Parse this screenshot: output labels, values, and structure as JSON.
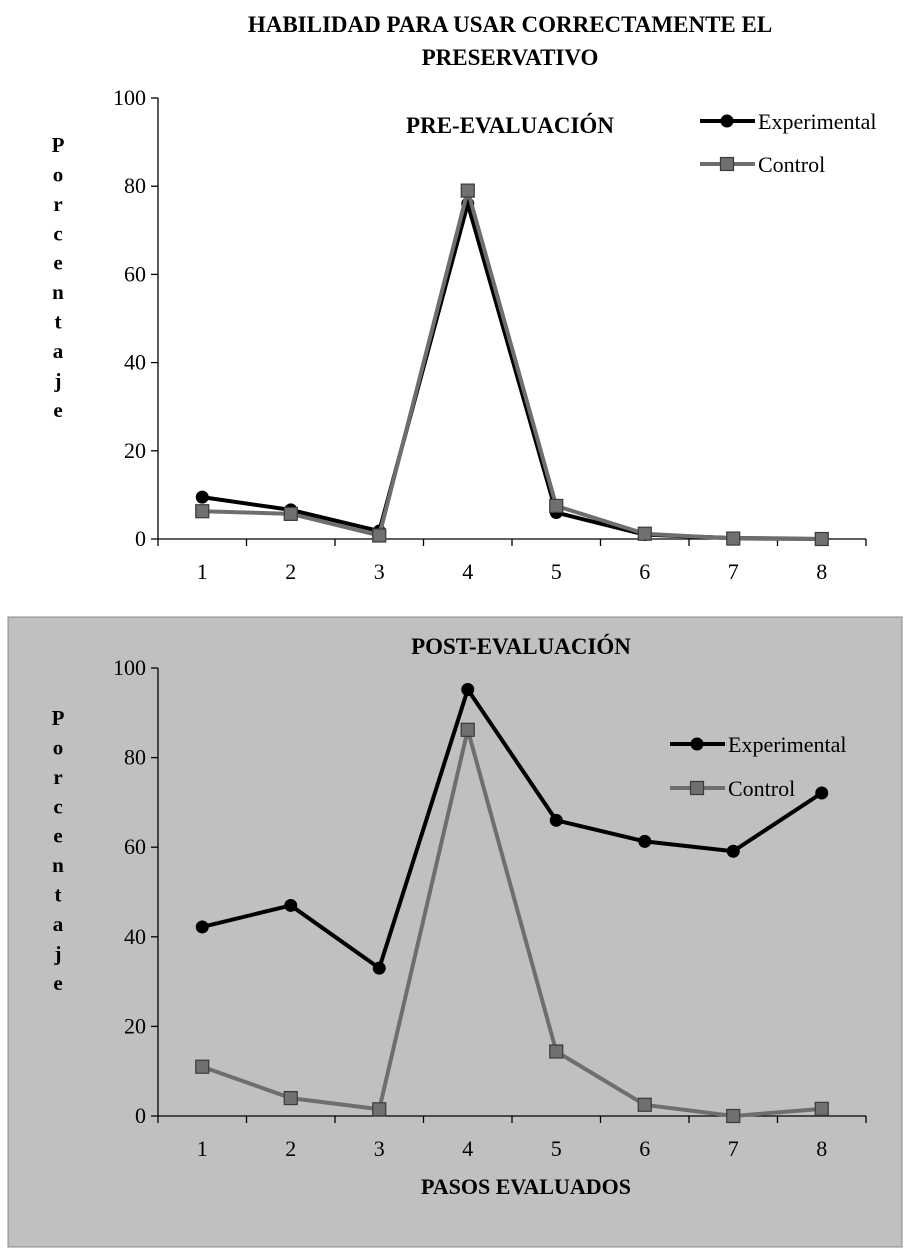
{
  "figure_title": "HABILIDAD PARA USAR CORRECTAMENTE EL PRESERVATIVO",
  "colors": {
    "experimental": "#000000",
    "control": "#6e6e6e",
    "post_background": "#c0c0c0"
  },
  "chart_data": [
    {
      "type": "line",
      "title": "PRE-EVALUACIÓN",
      "xlabel": "",
      "ylabel": "Porcentaje",
      "x": [
        1,
        2,
        3,
        4,
        5,
        6,
        7,
        8
      ],
      "ylim": [
        0,
        100
      ],
      "yticks": [
        0,
        20,
        40,
        60,
        80,
        100
      ],
      "grid": false,
      "legend": "top-right",
      "series": [
        {
          "name": "Experimental",
          "marker": "circle",
          "values": [
            9.5,
            6.6,
            1.8,
            76.0,
            6.0,
            1.0,
            0.2,
            0.0
          ]
        },
        {
          "name": "Control",
          "marker": "square",
          "values": [
            6.3,
            5.7,
            0.8,
            79.0,
            7.5,
            1.2,
            0.1,
            0.0
          ]
        }
      ]
    },
    {
      "type": "line",
      "title": "POST-EVALUACIÓN",
      "xlabel": "PASOS EVALUADOS",
      "ylabel": "Porcentaje",
      "x": [
        1,
        2,
        3,
        4,
        5,
        6,
        7,
        8
      ],
      "ylim": [
        0,
        100
      ],
      "yticks": [
        0,
        20,
        40,
        60,
        80,
        100
      ],
      "grid": false,
      "legend": "right",
      "series": [
        {
          "name": "Experimental",
          "marker": "circle",
          "values": [
            42.2,
            47.0,
            33.0,
            95.2,
            66.0,
            61.3,
            59.1,
            72.1
          ]
        },
        {
          "name": "Control",
          "marker": "square",
          "values": [
            11.0,
            4.0,
            1.5,
            86.2,
            14.4,
            2.5,
            0.0,
            1.6
          ]
        }
      ]
    }
  ]
}
